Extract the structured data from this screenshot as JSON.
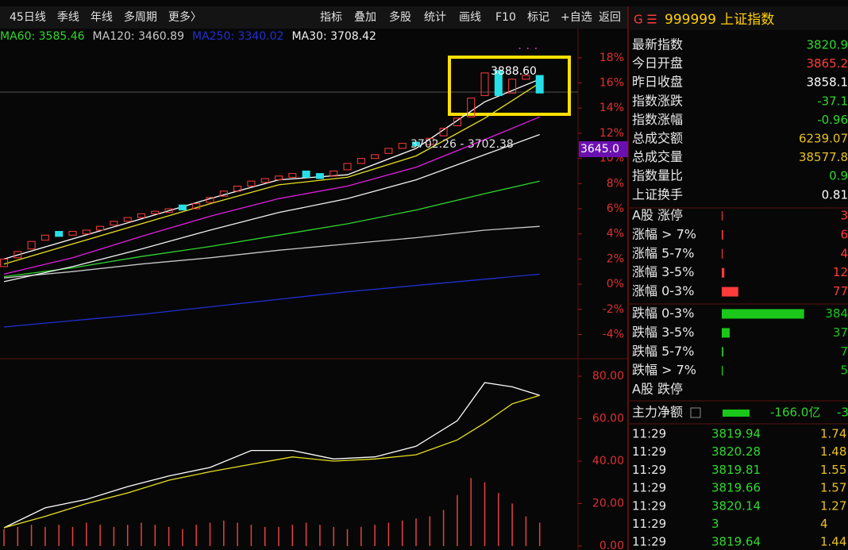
{
  "toolbar": {
    "left": [
      "45日线",
      "季线",
      "年线",
      "多周期",
      "更多〉"
    ],
    "right": [
      "指标",
      "叠加",
      "多股",
      "统计",
      "画线",
      "F10",
      "标记",
      "+自选",
      "返回"
    ]
  },
  "chart_data": [
    {
      "type": "candlestick",
      "up_color": "#ff3b3b",
      "down_color": "#26e0e8",
      "open": [
        1.4,
        2.1,
        2.8,
        3.5,
        4.2,
        3.9,
        4.0,
        4.3,
        4.7,
        5.0,
        5.3,
        5.6,
        5.7,
        6.3,
        6.0,
        6.5,
        7.0,
        7.4,
        7.8,
        8.1,
        8.3,
        8.5,
        9.0,
        8.8,
        8.6,
        9.1,
        9.6,
        10.0,
        10.4,
        10.8,
        11.3,
        11.1,
        11.8,
        12.6,
        13.3,
        15.0,
        17.0,
        15.2,
        16.3,
        16.6
      ],
      "close": [
        2.0,
        2.6,
        3.4,
        3.9,
        3.8,
        4.2,
        4.3,
        4.6,
        5.0,
        5.3,
        5.6,
        5.8,
        6.0,
        5.9,
        6.4,
        6.9,
        7.4,
        7.8,
        8.2,
        8.4,
        8.6,
        8.8,
        8.5,
        8.4,
        9.0,
        9.6,
        10.0,
        10.3,
        10.8,
        11.2,
        11.0,
        11.6,
        12.4,
        13.2,
        14.8,
        16.8,
        15.0,
        16.3,
        16.6,
        15.2
      ],
      "ylim": [
        -5.8,
        20.2
      ],
      "yticks": [
        {
          "value": 18,
          "label": "18%"
        },
        {
          "value": 16,
          "label": "16%"
        },
        {
          "value": 14,
          "label": "14%"
        },
        {
          "value": 12,
          "label": "12%"
        },
        {
          "value": 10,
          "label": "10%"
        },
        {
          "value": 8,
          "label": "8%"
        },
        {
          "value": 6,
          "label": "6%"
        },
        {
          "value": 4,
          "label": "4%"
        },
        {
          "value": 2,
          "label": "2%"
        },
        {
          "value": 0,
          "label": "0%"
        },
        {
          "value": -2,
          "label": "-2%"
        },
        {
          "value": -4,
          "label": "-4%"
        }
      ],
      "series": [
        {
          "name": "MA60: 3585.46",
          "color": "#2fd72f",
          "x": [
            0,
            5,
            10,
            15,
            20,
            25,
            30,
            35,
            39
          ],
          "values": [
            0.6,
            1.3,
            2.2,
            3.0,
            3.9,
            4.8,
            5.9,
            7.2,
            8.2
          ]
        },
        {
          "name": "MA120: 3460.89",
          "color": "#c8c8c8",
          "x": [
            0,
            5,
            10,
            15,
            20,
            25,
            30,
            35,
            39
          ],
          "values": [
            0.5,
            1.0,
            1.6,
            2.1,
            2.7,
            3.2,
            3.7,
            4.3,
            4.6
          ]
        },
        {
          "name": "MA250: 3340.02",
          "color": "#2030d0",
          "x": [
            0,
            5,
            10,
            15,
            20,
            25,
            30,
            35,
            39
          ],
          "values": [
            -3.4,
            -2.9,
            -2.4,
            -1.8,
            -1.2,
            -0.6,
            -0.1,
            0.4,
            0.8
          ]
        },
        {
          "name": "MA30: 3708.42",
          "color": "#f0f0f0",
          "x": [
            0,
            5,
            10,
            15,
            20,
            25,
            30,
            35,
            39
          ],
          "values": [
            0.2,
            1.4,
            2.8,
            4.3,
            5.7,
            6.8,
            8.3,
            10.3,
            11.9
          ]
        },
        {
          "color": "#e01ee0",
          "x": [
            0,
            5,
            10,
            15,
            20,
            25,
            30,
            35,
            39
          ],
          "values": [
            0.8,
            2.1,
            3.8,
            5.4,
            6.8,
            7.8,
            9.3,
            11.5,
            13.3
          ]
        },
        {
          "color": "#e8e020",
          "x": [
            0,
            5,
            10,
            15,
            20,
            25,
            30,
            35,
            39
          ],
          "values": [
            1.6,
            3.2,
            4.8,
            6.4,
            7.9,
            8.5,
            10.2,
            13.2,
            16.0
          ]
        },
        {
          "color": "#ffffff",
          "x": [
            0,
            5,
            10,
            15,
            20,
            25,
            30,
            35,
            39
          ],
          "values": [
            2.0,
            3.6,
            5.2,
            6.8,
            8.3,
            8.7,
            10.8,
            14.5,
            16.3
          ]
        }
      ],
      "annotations": [
        "3888.60",
        "3702.26 - 3702.38",
        "3645.0"
      ]
    },
    {
      "type": "line",
      "ylim": [
        0,
        84.5
      ],
      "yticks": [
        {
          "value": 80,
          "label": "80.00"
        },
        {
          "value": 60,
          "label": "60.00"
        },
        {
          "value": 40,
          "label": "40.00"
        },
        {
          "value": 20,
          "label": "20.00"
        },
        {
          "value": 0,
          "label": "0.00"
        }
      ],
      "series": [
        {
          "color": "#ffffff",
          "x": [
            0,
            3,
            6,
            9,
            12,
            15,
            18,
            21,
            24,
            27,
            30,
            33,
            35,
            37,
            39
          ],
          "values": [
            8.6,
            18,
            22,
            28,
            33,
            37,
            45,
            45,
            41,
            42,
            47,
            59,
            77,
            75,
            71
          ]
        },
        {
          "color": "#e8e020",
          "x": [
            0,
            3,
            6,
            9,
            12,
            15,
            18,
            21,
            24,
            27,
            30,
            33,
            35,
            37,
            39
          ],
          "values": [
            8.6,
            14,
            20,
            25,
            31,
            35,
            38.5,
            42,
            40,
            41,
            43,
            50,
            58,
            67,
            71
          ]
        }
      ],
      "volume": [
        8,
        9,
        10,
        9,
        10,
        9,
        11,
        10,
        9,
        10,
        11,
        10,
        9,
        8,
        10,
        11,
        12,
        11,
        10,
        9,
        9,
        10,
        11,
        10,
        9,
        8,
        9,
        10,
        11,
        12,
        13,
        14,
        17,
        24,
        32,
        30,
        25,
        20,
        14,
        11
      ],
      "volume_color": "#e84040"
    }
  ],
  "panel": {
    "title": "999999 上证指数",
    "stats": [
      {
        "label": "最新指数",
        "value": "3820.9",
        "color": "#2fd72f"
      },
      {
        "label": "今日开盘",
        "value": "3865.2",
        "color": "#ff3b3b"
      },
      {
        "label": "昨日收盘",
        "value": "3858.1",
        "color": "#ffffff"
      },
      {
        "label": "指数涨跌",
        "value": "-37.1",
        "color": "#2fd72f"
      },
      {
        "label": "指数涨幅",
        "value": "-0.96",
        "color": "#2fd72f"
      },
      {
        "label": "总成交额",
        "value": "6239.07",
        "color": "#e8c020"
      },
      {
        "label": "总成交量",
        "value": "38577.8",
        "color": "#e8c020"
      },
      {
        "label": "指数量比",
        "value": "0.9",
        "color": "#2fd72f"
      },
      {
        "label": "上证换手",
        "value": "0.81",
        "color": "#ffffff"
      }
    ],
    "breadth": [
      {
        "label": "A股 涨停",
        "value": 3,
        "color": "#ff3b3b"
      },
      {
        "label": "涨幅 > 7%",
        "value": 6,
        "color": "#ff3b3b"
      },
      {
        "label": "涨幅 5-7%",
        "value": 4,
        "color": "#ff3b3b"
      },
      {
        "label": "涨幅 3-5%",
        "value": 12,
        "color": "#ff3b3b"
      },
      {
        "label": "涨幅 0-3%",
        "value": 77,
        "color": "#ff3b3b"
      },
      {
        "label": "跌幅 0-3%",
        "value": 384,
        "color": "#19c819"
      },
      {
        "label": "跌幅 3-5%",
        "value": 37,
        "color": "#19c819"
      },
      {
        "label": "跌幅 5-7%",
        "value": 7,
        "color": "#19c819"
      },
      {
        "label": "跌幅 > 7%",
        "value": 5,
        "color": "#19c819"
      },
      {
        "label": "A股 跌停",
        "value": null,
        "color": "#19c819"
      }
    ],
    "flow": {
      "label": "主力净额",
      "value": "-166.0亿",
      "extra": "-3"
    },
    "ticks": [
      [
        "11:29",
        "3819.94",
        "1.74"
      ],
      [
        "11:29",
        "3820.28",
        "1.48"
      ],
      [
        "11:29",
        "3819.81",
        "1.55"
      ],
      [
        "11:29",
        "3819.66",
        "1.57"
      ],
      [
        "11:29",
        "3820.14",
        "1.27"
      ],
      [
        "11:29",
        "3",
        "4"
      ],
      [
        "11:29",
        "3819.64",
        "1.44"
      ]
    ]
  }
}
